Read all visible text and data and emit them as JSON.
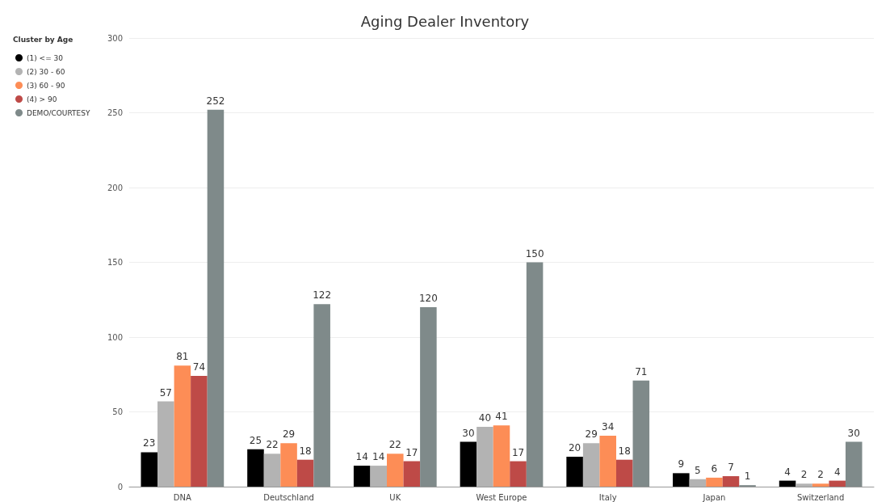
{
  "chart_data": {
    "type": "bar",
    "title": "Aging Dealer Inventory",
    "legend_title": "Cluster by Age",
    "categories": [
      "DNA",
      "Deutschland",
      "UK",
      "West Europe",
      "Italy",
      "Japan",
      "Switzerland"
    ],
    "series": [
      {
        "name": "(1) <= 30",
        "color": "#000000",
        "values": [
          23,
          25,
          14,
          30,
          20,
          9,
          4
        ]
      },
      {
        "name": "(2) 30 - 60",
        "color": "#b3b3b3",
        "values": [
          57,
          22,
          14,
          40,
          29,
          5,
          2
        ]
      },
      {
        "name": "(3) 60 - 90",
        "color": "#fd8d56",
        "values": [
          81,
          29,
          22,
          41,
          34,
          6,
          2
        ]
      },
      {
        "name": "(4) > 90",
        "color": "#be4a47",
        "values": [
          74,
          18,
          17,
          17,
          18,
          7,
          4
        ]
      },
      {
        "name": "DEMO/COURTESY",
        "color": "#7f8a8a",
        "values": [
          252,
          122,
          120,
          150,
          71,
          1,
          30
        ]
      }
    ],
    "ylim": [
      0,
      300
    ],
    "yticks": [
      0,
      50,
      100,
      150,
      200,
      250,
      300
    ],
    "grid": "y",
    "legend": "top left",
    "data_labels": true
  }
}
